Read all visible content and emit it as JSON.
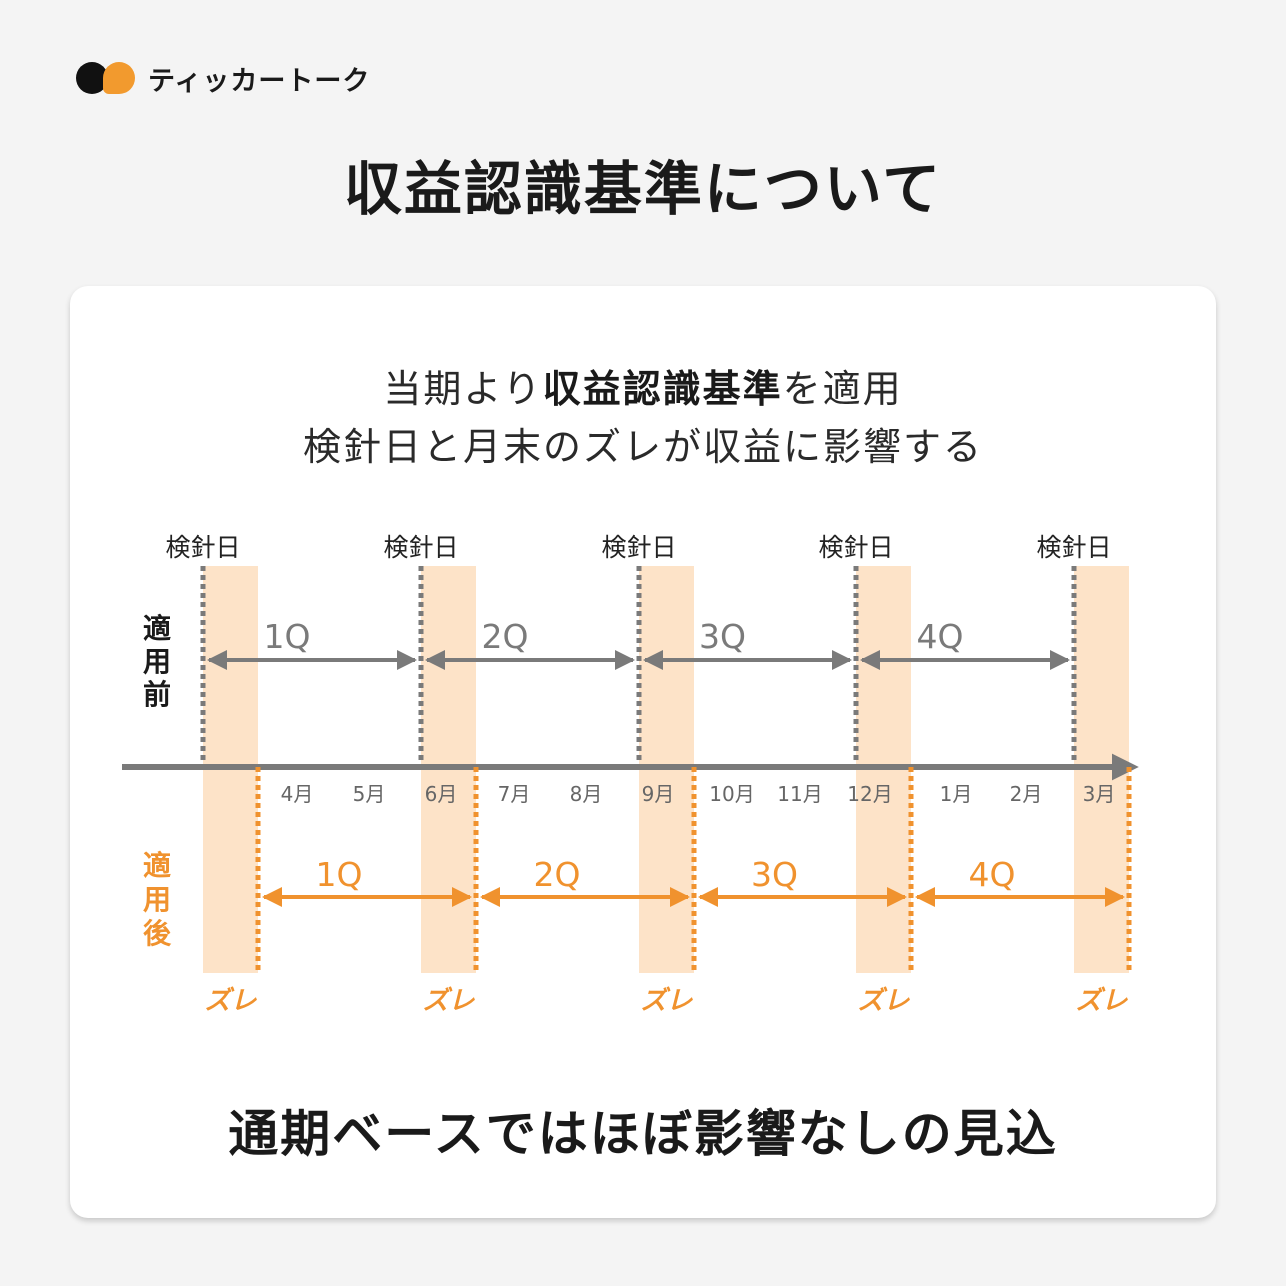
{
  "brand": {
    "name": "ティッカートーク"
  },
  "title": "収益認識基準について",
  "subtitle": {
    "line1_pre": "当期より",
    "line1_bold": "収益認識基準",
    "line1_post": "を適用",
    "line2": "検針日と月末のズレが収益に影響する"
  },
  "diagram": {
    "meter_label": "検針日",
    "before_label": [
      "適",
      "用",
      "前"
    ],
    "after_label": [
      "適",
      "用",
      "後"
    ],
    "quarters": [
      "1Q",
      "2Q",
      "3Q",
      "4Q"
    ],
    "months": [
      "4月",
      "5月",
      "6月",
      "7月",
      "8月",
      "9月",
      "10月",
      "11月",
      "12月",
      "1月",
      "2月",
      "3月"
    ],
    "gap_label": "ズレ",
    "colors": {
      "gray": "#7a7a7a",
      "orange": "#f0922e",
      "band": "#fde3c8",
      "text_gray": "#666666"
    }
  },
  "conclusion": "通期ベースではほぼ影響なしの見込"
}
